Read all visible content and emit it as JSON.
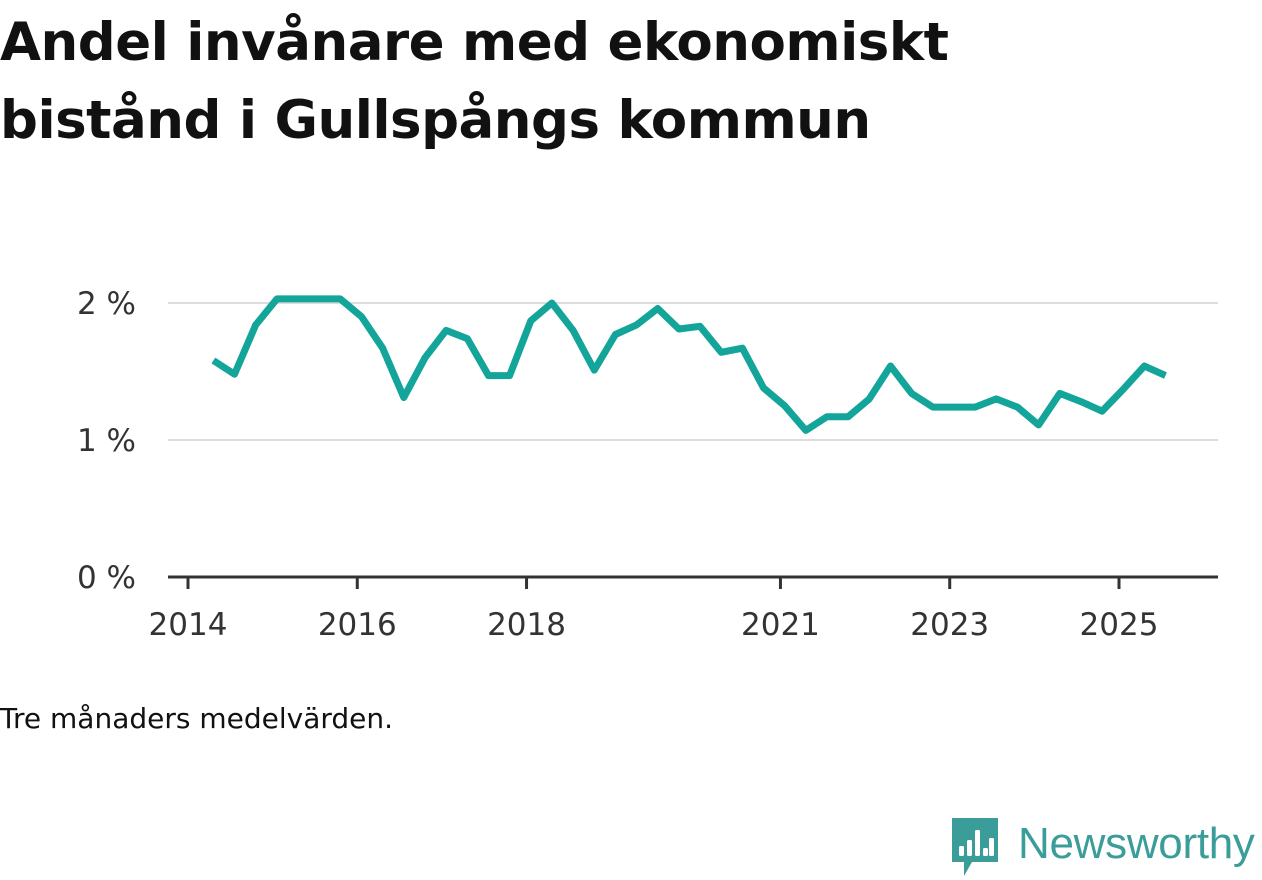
{
  "header": {
    "title": "Andel invånare med ekonomiskt bistånd i Gullspångs kommun"
  },
  "footer": {
    "note": "Tre månaders medelvärden.",
    "brand": "Newsworthy"
  },
  "colors": {
    "line": "#13a49a",
    "grid": "#dddddd",
    "axis": "#333333",
    "brand": "#3a9d9a"
  },
  "chart_data": {
    "type": "line",
    "title": "Andel invånare med ekonomiskt bistånd i Gullspångs kommun",
    "xlabel": "",
    "ylabel": "",
    "ylim": [
      0,
      2.1
    ],
    "grid": true,
    "legend": "none",
    "y_ticks": [
      {
        "value": 0,
        "label": "0 %"
      },
      {
        "value": 1,
        "label": "1 %"
      },
      {
        "value": 2,
        "label": "2 %"
      }
    ],
    "x_ticks": [
      {
        "value": 2014.0,
        "label": "2014"
      },
      {
        "value": 2016.0,
        "label": "2016"
      },
      {
        "value": 2018.0,
        "label": "2018"
      },
      {
        "value": 2021.0,
        "label": "2021"
      },
      {
        "value": 2023.0,
        "label": "2023"
      },
      {
        "value": 2025.0,
        "label": "2025"
      }
    ],
    "series": [
      {
        "name": "Andel invånare med ekonomiskt bistånd",
        "x": [
          2014.3,
          2014.55,
          2014.8,
          2015.05,
          2015.3,
          2015.55,
          2015.8,
          2016.05,
          2016.3,
          2016.55,
          2016.8,
          2017.05,
          2017.3,
          2017.55,
          2017.8,
          2018.05,
          2018.3,
          2018.55,
          2018.8,
          2019.05,
          2019.3,
          2019.55,
          2019.8,
          2020.05,
          2020.3,
          2020.55,
          2020.8,
          2021.05,
          2021.3,
          2021.55,
          2021.8,
          2022.05,
          2022.3,
          2022.55,
          2022.8,
          2023.05,
          2023.3,
          2023.55,
          2023.8,
          2024.05,
          2024.3,
          2024.55,
          2024.8,
          2025.05,
          2025.3,
          2025.55
        ],
        "values": [
          1.58,
          1.48,
          1.84,
          2.03,
          2.03,
          2.03,
          2.03,
          1.9,
          1.67,
          1.31,
          1.6,
          1.8,
          1.74,
          1.47,
          1.47,
          1.87,
          2.0,
          1.8,
          1.51,
          1.77,
          1.84,
          1.96,
          1.81,
          1.83,
          1.64,
          1.67,
          1.38,
          1.25,
          1.07,
          1.17,
          1.17,
          1.3,
          1.54,
          1.34,
          1.24,
          1.24,
          1.24,
          1.3,
          1.24,
          1.11,
          1.34,
          1.28,
          1.21,
          1.37,
          1.54,
          1.47
        ]
      }
    ]
  }
}
